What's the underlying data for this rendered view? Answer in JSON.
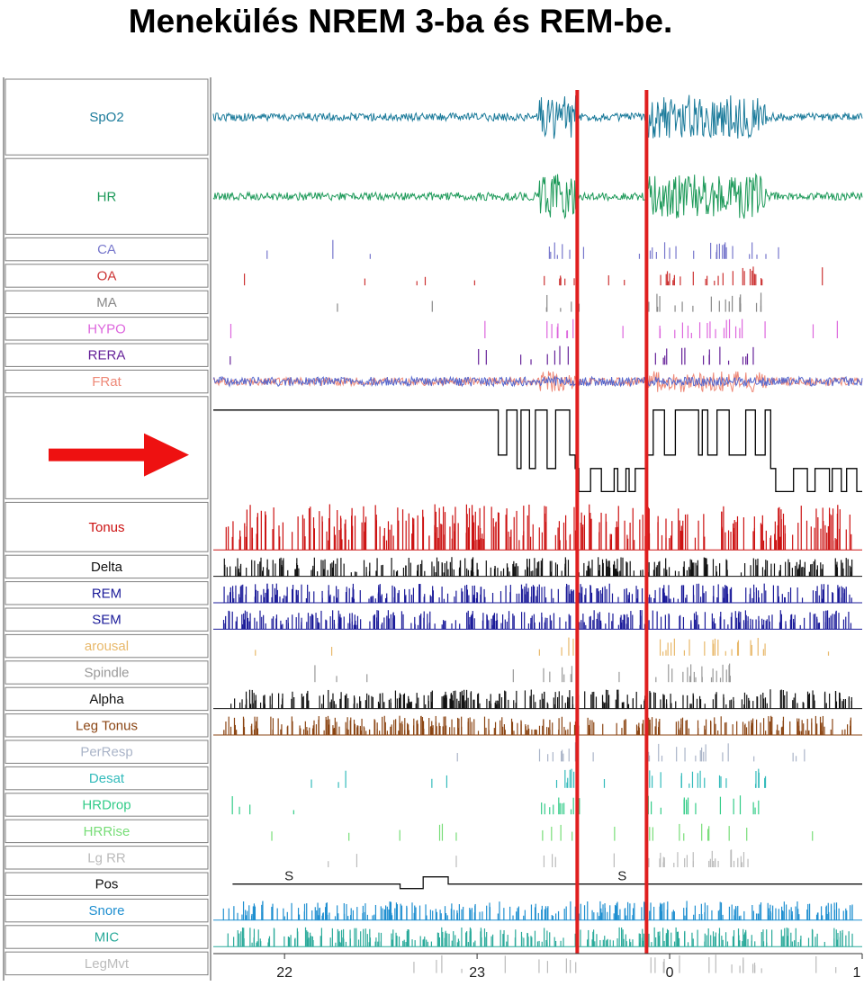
{
  "title": "Menekülés  NREM 3-ba és REM-be.",
  "colors": {
    "marker_line": "#e01f1f",
    "arrow": "#ee1111",
    "panel_border": "#7f7f7f"
  },
  "chart_data": {
    "type": "line",
    "title": "Menekülés  NREM 3-ba és REM-be.",
    "x_ticks": [
      "22",
      "23",
      "0",
      "1"
    ],
    "x_tick_values": [
      22,
      23,
      24,
      25
    ],
    "xlim": [
      21.63,
      25.0
    ],
    "vertical_markers": [
      23.52,
      23.88
    ],
    "arrow_target": "hypnogram",
    "channels": [
      {
        "id": "spo2",
        "label": "SpO2",
        "color": "#1a7a9a",
        "kind": "wave",
        "rows": 3
      },
      {
        "id": "hr",
        "label": "HR",
        "color": "#1e9a5a",
        "kind": "wave",
        "rows": 3
      },
      {
        "id": "ca",
        "label": "CA",
        "color": "#7777cc",
        "kind": "events"
      },
      {
        "id": "oa",
        "label": "OA",
        "color": "#cc3333",
        "kind": "events"
      },
      {
        "id": "ma",
        "label": "MA",
        "color": "#888888",
        "kind": "events"
      },
      {
        "id": "hypo",
        "label": "HYPO",
        "color": "#dd66dd",
        "kind": "events"
      },
      {
        "id": "rera",
        "label": "RERA",
        "color": "#662299",
        "kind": "events"
      },
      {
        "id": "frat",
        "label": "FRat",
        "color": "#ee8877",
        "kind": "wave",
        "rows": 1
      },
      {
        "id": "hypnogram",
        "label": "",
        "color": "#000000",
        "kind": "hypnogram",
        "rows": 4
      },
      {
        "id": "tonus",
        "label": "Tonus",
        "color": "#cc1111",
        "kind": "spikes",
        "rows": 2
      },
      {
        "id": "delta",
        "label": "Delta",
        "color": "#111111",
        "kind": "spikes"
      },
      {
        "id": "rem",
        "label": "REM",
        "color": "#1a1a99",
        "kind": "spikes"
      },
      {
        "id": "sem",
        "label": "SEM",
        "color": "#1a1a99",
        "kind": "spikes"
      },
      {
        "id": "arousal",
        "label": "arousal",
        "color": "#e8b86a",
        "kind": "events"
      },
      {
        "id": "spindle",
        "label": "Spindle",
        "color": "#999999",
        "kind": "events"
      },
      {
        "id": "alpha",
        "label": "Alpha",
        "color": "#111111",
        "kind": "spikes"
      },
      {
        "id": "legtonus",
        "label": "Leg Tonus",
        "color": "#8b4513",
        "kind": "spikes"
      },
      {
        "id": "perresp",
        "label": "PerResp",
        "color": "#aab4c8",
        "kind": "events"
      },
      {
        "id": "desat",
        "label": "Desat",
        "color": "#33bbbb",
        "kind": "events"
      },
      {
        "id": "hrdrop",
        "label": "HRDrop",
        "color": "#33cc88",
        "kind": "events"
      },
      {
        "id": "hrrise",
        "label": "HRRise",
        "color": "#77dd77",
        "kind": "events"
      },
      {
        "id": "lgrr",
        "label": "Lg RR",
        "color": "#bbbbbb",
        "kind": "events"
      },
      {
        "id": "pos",
        "label": "Pos",
        "color": "#111111",
        "kind": "position",
        "annotations": [
          "S",
          "S"
        ]
      },
      {
        "id": "snore",
        "label": "Snore",
        "color": "#1f8fd0",
        "kind": "spikes"
      },
      {
        "id": "mic",
        "label": "MIC",
        "color": "#2aaa9a",
        "kind": "spikes"
      },
      {
        "id": "legmvt",
        "label": "LegMvt",
        "color": "#bbbbbb",
        "kind": "events"
      }
    ]
  }
}
